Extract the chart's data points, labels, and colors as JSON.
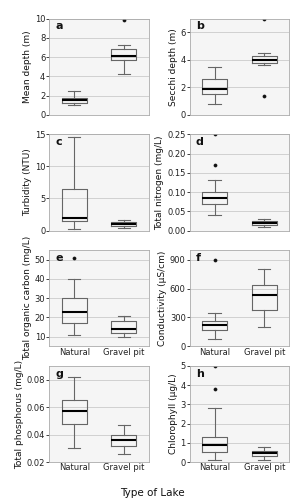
{
  "panels": [
    {
      "label": "a",
      "ylabel": "Mean depth (m)",
      "ylim": [
        0,
        10
      ],
      "yticks": [
        0,
        2,
        4,
        6,
        8,
        10
      ],
      "show_xlabel": false,
      "natural": {
        "median": 1.5,
        "q1": 1.2,
        "q3": 1.7,
        "whislo": 1.0,
        "whishi": 2.5,
        "fliers": []
      },
      "gravel": {
        "median": 6.1,
        "q1": 5.7,
        "q3": 6.8,
        "whislo": 4.2,
        "whishi": 7.3,
        "fliers": [
          9.8
        ]
      }
    },
    {
      "label": "b",
      "ylabel": "Secchi depth (m)",
      "ylim": [
        0,
        7
      ],
      "yticks": [
        0,
        2,
        4,
        6
      ],
      "show_xlabel": false,
      "natural": {
        "median": 1.9,
        "q1": 1.5,
        "q3": 2.6,
        "whislo": 0.8,
        "whishi": 3.5,
        "fliers": []
      },
      "gravel": {
        "median": 4.0,
        "q1": 3.8,
        "q3": 4.3,
        "whislo": 3.6,
        "whishi": 4.5,
        "fliers": [
          7.0,
          1.4
        ]
      }
    },
    {
      "label": "c",
      "ylabel": "Turbidity (NTU)",
      "ylim": [
        0,
        15
      ],
      "yticks": [
        0,
        5,
        10,
        15
      ],
      "show_xlabel": false,
      "natural": {
        "median": 2.0,
        "q1": 1.5,
        "q3": 6.5,
        "whislo": 0.3,
        "whishi": 14.5,
        "fliers": []
      },
      "gravel": {
        "median": 1.0,
        "q1": 0.7,
        "q3": 1.3,
        "whislo": 0.4,
        "whishi": 1.7,
        "fliers": []
      }
    },
    {
      "label": "d",
      "ylabel": "Total nitrogen (mg/L)",
      "ylim": [
        0.0,
        0.25
      ],
      "yticks": [
        0.0,
        0.05,
        0.1,
        0.15,
        0.2,
        0.25
      ],
      "show_xlabel": false,
      "natural": {
        "median": 0.085,
        "q1": 0.07,
        "q3": 0.1,
        "whislo": 0.04,
        "whishi": 0.13,
        "fliers": [
          0.17,
          0.25
        ]
      },
      "gravel": {
        "median": 0.02,
        "q1": 0.015,
        "q3": 0.025,
        "whislo": 0.01,
        "whishi": 0.03,
        "fliers": []
      }
    },
    {
      "label": "e",
      "ylabel": "Total organic carbon (mg/L)",
      "ylim": [
        5,
        55
      ],
      "yticks": [
        10,
        20,
        30,
        40,
        50
      ],
      "show_xlabel": true,
      "natural": {
        "median": 23.0,
        "q1": 17.0,
        "q3": 30.0,
        "whislo": 11.0,
        "whishi": 40.0,
        "fliers": [
          51.0
        ]
      },
      "gravel": {
        "median": 14.0,
        "q1": 12.0,
        "q3": 18.0,
        "whislo": 10.0,
        "whishi": 21.0,
        "fliers": []
      }
    },
    {
      "label": "f",
      "ylabel": "Conductivity (μS/cm)",
      "ylim": [
        0,
        1000
      ],
      "yticks": [
        0,
        300,
        600,
        900
      ],
      "show_xlabel": true,
      "natural": {
        "median": 220.0,
        "q1": 170.0,
        "q3": 260.0,
        "whislo": 80.0,
        "whishi": 350.0,
        "fliers": [
          900.0
        ]
      },
      "gravel": {
        "median": 530.0,
        "q1": 380.0,
        "q3": 640.0,
        "whislo": 200.0,
        "whishi": 800.0,
        "fliers": []
      }
    },
    {
      "label": "g",
      "ylabel": "Total phosphorus (mg/L)",
      "ylim": [
        0.02,
        0.09
      ],
      "yticks": [
        0.02,
        0.04,
        0.06,
        0.08
      ],
      "show_xlabel": true,
      "natural": {
        "median": 0.057,
        "q1": 0.048,
        "q3": 0.065,
        "whislo": 0.03,
        "whishi": 0.082,
        "fliers": []
      },
      "gravel": {
        "median": 0.036,
        "q1": 0.032,
        "q3": 0.04,
        "whislo": 0.026,
        "whishi": 0.047,
        "fliers": []
      }
    },
    {
      "label": "h",
      "ylabel": "Chlorophyll (μg/L)",
      "ylim": [
        0,
        5
      ],
      "yticks": [
        0,
        1,
        2,
        3,
        4,
        5
      ],
      "show_xlabel": true,
      "natural": {
        "median": 0.9,
        "q1": 0.5,
        "q3": 1.3,
        "whislo": 0.1,
        "whishi": 2.8,
        "fliers": [
          3.8,
          5.0
        ]
      },
      "gravel": {
        "median": 0.45,
        "q1": 0.3,
        "q3": 0.6,
        "whislo": 0.1,
        "whishi": 0.8,
        "fliers": []
      }
    }
  ],
  "box_color": "#666666",
  "median_color": "#000000",
  "flier_color": "#111111",
  "background_color": "#ffffff",
  "grid_color": "#d0d0d0",
  "panel_bg": "#f5f5f5",
  "xlabel": "Type of Lake",
  "categories": [
    "Natural",
    "Gravel pit"
  ],
  "title_fontsize": 7,
  "tick_fontsize": 6,
  "ylabel_fontsize": 6.5,
  "xlabel_fontsize": 7.5
}
